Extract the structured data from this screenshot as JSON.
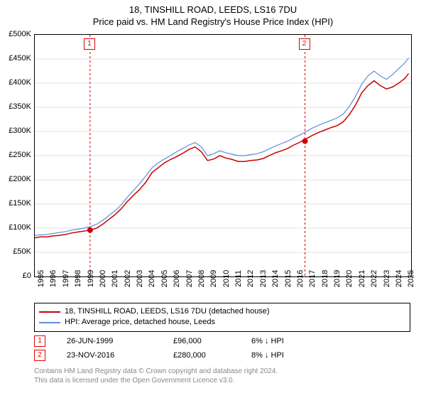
{
  "title_line1": "18, TINSHILL ROAD, LEEDS, LS16 7DU",
  "title_line2": "Price paid vs. HM Land Registry's House Price Index (HPI)",
  "chart": {
    "type": "line",
    "background_color": "#ffffff",
    "grid_color": "#e0e0e0",
    "border_color": "#000000",
    "ylim": [
      0,
      500000
    ],
    "ytick_step": 50000,
    "ytick_labels": [
      "£0",
      "£50K",
      "£100K",
      "£150K",
      "£200K",
      "£250K",
      "£300K",
      "£350K",
      "£400K",
      "£450K",
      "£500K"
    ],
    "xlim": [
      1995,
      2025.5
    ],
    "xtick_step": 1,
    "xtick_labels": [
      "1995",
      "1996",
      "1997",
      "1998",
      "1999",
      "2000",
      "2001",
      "2002",
      "2003",
      "2004",
      "2005",
      "2006",
      "2007",
      "2008",
      "2009",
      "2010",
      "2011",
      "2012",
      "2013",
      "2014",
      "2015",
      "2016",
      "2017",
      "2018",
      "2019",
      "2020",
      "2021",
      "2022",
      "2023",
      "2024",
      "2025"
    ],
    "series": [
      {
        "name": "price_paid",
        "label": "18, TINSHILL ROAD, LEEDS, LS16 7DU (detached house)",
        "color": "#cc0000",
        "line_width": 1.5,
        "x": [
          1995,
          1995.5,
          1996,
          1996.5,
          1997,
          1997.5,
          1998,
          1998.5,
          1999,
          1999.5,
          2000,
          2000.5,
          2001,
          2001.5,
          2002,
          2002.5,
          2003,
          2003.5,
          2004,
          2004.5,
          2005,
          2005.5,
          2006,
          2006.5,
          2007,
          2007.5,
          2008,
          2008.5,
          2009,
          2009.5,
          2010,
          2010.5,
          2011,
          2011.5,
          2012,
          2012.5,
          2013,
          2013.5,
          2014,
          2014.5,
          2015,
          2015.5,
          2016,
          2016.5,
          2017,
          2017.5,
          2018,
          2018.5,
          2019,
          2019.5,
          2020,
          2020.5,
          2021,
          2021.5,
          2022,
          2022.5,
          2023,
          2023.5,
          2024,
          2024.5,
          2025,
          2025.3
        ],
        "y": [
          80000,
          82000,
          82000,
          84000,
          85000,
          87000,
          90000,
          92000,
          94000,
          96000,
          100000,
          108000,
          118000,
          128000,
          140000,
          155000,
          168000,
          180000,
          195000,
          215000,
          225000,
          235000,
          242000,
          248000,
          255000,
          263000,
          268000,
          258000,
          240000,
          243000,
          250000,
          245000,
          242000,
          238000,
          238000,
          240000,
          241000,
          244000,
          250000,
          256000,
          260000,
          265000,
          272000,
          278000,
          285000,
          292000,
          298000,
          303000,
          308000,
          312000,
          320000,
          335000,
          355000,
          380000,
          395000,
          405000,
          395000,
          388000,
          392000,
          400000,
          410000,
          420000
        ]
      },
      {
        "name": "hpi",
        "label": "HPI: Average price, detached house, Leeds",
        "color": "#5b8fd8",
        "line_width": 1.2,
        "x": [
          1995,
          1995.5,
          1996,
          1996.5,
          1997,
          1997.5,
          1998,
          1998.5,
          1999,
          1999.5,
          2000,
          2000.5,
          2001,
          2001.5,
          2002,
          2002.5,
          2003,
          2003.5,
          2004,
          2004.5,
          2005,
          2005.5,
          2006,
          2006.5,
          2007,
          2007.5,
          2008,
          2008.5,
          2009,
          2009.5,
          2010,
          2010.5,
          2011,
          2011.5,
          2012,
          2012.5,
          2013,
          2013.5,
          2014,
          2014.5,
          2015,
          2015.5,
          2016,
          2016.5,
          2017,
          2017.5,
          2018,
          2018.5,
          2019,
          2019.5,
          2020,
          2020.5,
          2021,
          2021.5,
          2022,
          2022.5,
          2023,
          2023.5,
          2024,
          2024.5,
          2025,
          2025.3
        ],
        "y": [
          85000,
          86000,
          87000,
          89000,
          91000,
          93000,
          96000,
          98000,
          100000,
          103000,
          108000,
          116000,
          126000,
          136000,
          148000,
          164000,
          178000,
          192000,
          208000,
          225000,
          235000,
          243000,
          250000,
          258000,
          265000,
          272000,
          277000,
          268000,
          250000,
          254000,
          260000,
          256000,
          253000,
          250000,
          250000,
          252000,
          254000,
          258000,
          264000,
          270000,
          275000,
          280000,
          287000,
          293000,
          300000,
          307000,
          313000,
          318000,
          323000,
          328000,
          336000,
          352000,
          373000,
          398000,
          415000,
          425000,
          415000,
          408000,
          418000,
          430000,
          442000,
          452000
        ]
      }
    ],
    "vertical_markers": [
      {
        "label": "1",
        "x": 1999.48,
        "color": "#d00000",
        "point_y": 96000
      },
      {
        "label": "2",
        "x": 2016.9,
        "color": "#d00000",
        "point_y": 280000
      }
    ]
  },
  "legend": {
    "items": [
      {
        "color": "#cc0000",
        "label": "18, TINSHILL ROAD, LEEDS, LS16 7DU (detached house)"
      },
      {
        "color": "#5b8fd8",
        "label": "HPI: Average price, detached house, Leeds"
      }
    ]
  },
  "transactions": [
    {
      "marker": "1",
      "date": "26-JUN-1999",
      "price": "£96,000",
      "delta": "6% ↓ HPI"
    },
    {
      "marker": "2",
      "date": "23-NOV-2016",
      "price": "£280,000",
      "delta": "8% ↓ HPI"
    }
  ],
  "footer_line1": "Contains HM Land Registry data © Crown copyright and database right 2024.",
  "footer_line2": "This data is licensed under the Open Government Licence v3.0."
}
